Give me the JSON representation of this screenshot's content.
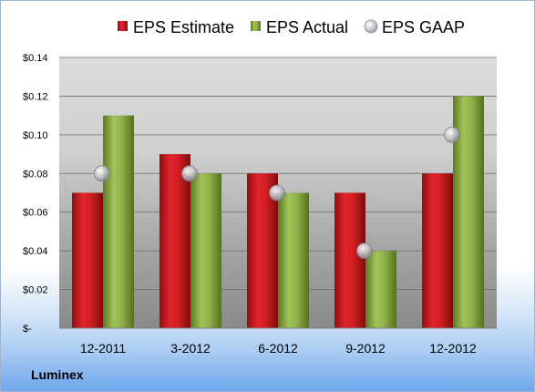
{
  "company": "Luminex",
  "chart_data": {
    "type": "bar",
    "title": "",
    "xlabel": "",
    "ylabel": "",
    "categories": [
      "12-2011",
      "3-2012",
      "6-2012",
      "9-2012",
      "12-2012"
    ],
    "series": [
      {
        "name": "EPS Estimate",
        "kind": "bar",
        "color": "#c0161b",
        "values": [
          0.07,
          0.09,
          0.08,
          0.07,
          0.08
        ]
      },
      {
        "name": "EPS Actual",
        "kind": "bar",
        "color": "#8aa845",
        "values": [
          0.11,
          0.08,
          0.07,
          0.04,
          0.12
        ]
      },
      {
        "name": "EPS GAAP",
        "kind": "marker",
        "color": "#c8ccd2",
        "values": [
          0.08,
          0.08,
          0.07,
          0.04,
          0.1
        ]
      }
    ],
    "ylim": [
      0,
      0.14
    ],
    "yticks": [
      0,
      0.02,
      0.04,
      0.06,
      0.08,
      0.1,
      0.12,
      0.14
    ],
    "ytick_labels": [
      "$-",
      "$0.02",
      "$0.04",
      "$0.06",
      "$0.08",
      "$0.10",
      "$0.12",
      "$0.14"
    ],
    "grid": true,
    "legend_position": "top"
  }
}
